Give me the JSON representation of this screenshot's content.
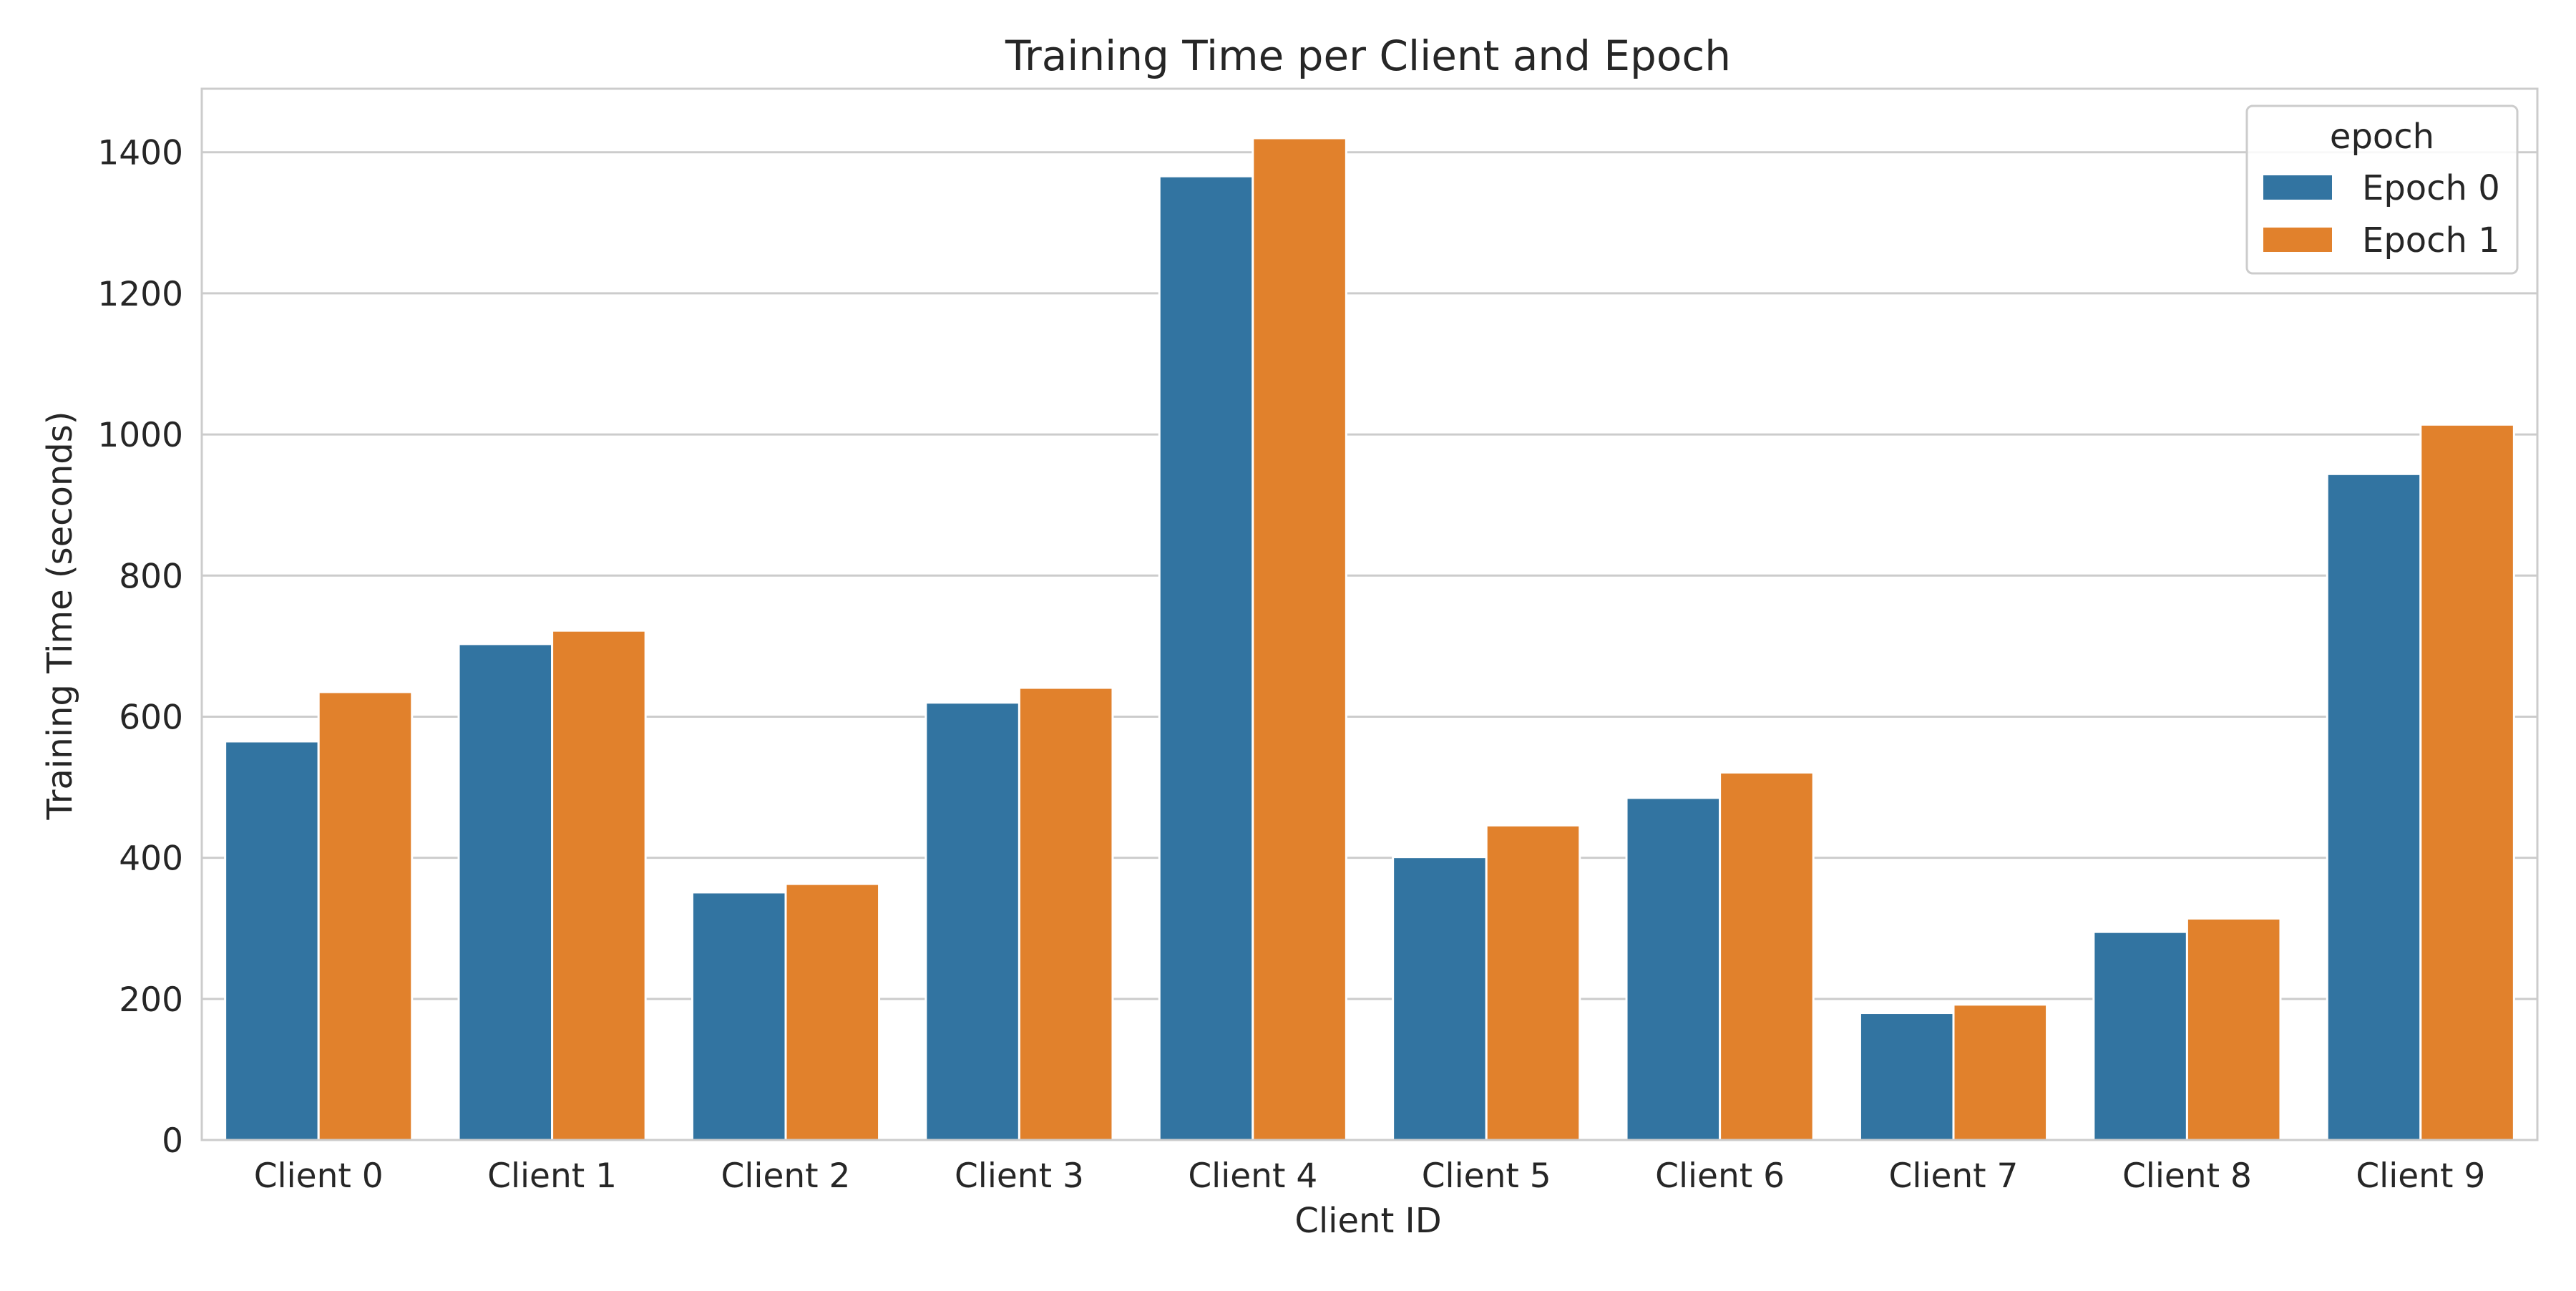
{
  "chart_data": {
    "type": "bar",
    "title": "Training Time per Client and Epoch",
    "xlabel": "Client ID",
    "ylabel": "Training Time (seconds)",
    "categories": [
      "Client 0",
      "Client 1",
      "Client 2",
      "Client 3",
      "Client 4",
      "Client 5",
      "Client 6",
      "Client 7",
      "Client 8",
      "Client 9"
    ],
    "series": [
      {
        "name": "Epoch 0",
        "color": "#3274a1",
        "values": [
          565,
          703,
          351,
          620,
          1366,
          401,
          485,
          180,
          295,
          944
        ]
      },
      {
        "name": "Epoch 1",
        "color": "#e1812c",
        "values": [
          635,
          722,
          363,
          641,
          1420,
          446,
          521,
          192,
          314,
          1014
        ]
      }
    ],
    "ylim": [
      0,
      1490
    ],
    "yticks": [
      0,
      200,
      400,
      600,
      800,
      1000,
      1200,
      1400
    ],
    "grid": true,
    "legend": {
      "title": "epoch",
      "placement": "top-right"
    }
  }
}
